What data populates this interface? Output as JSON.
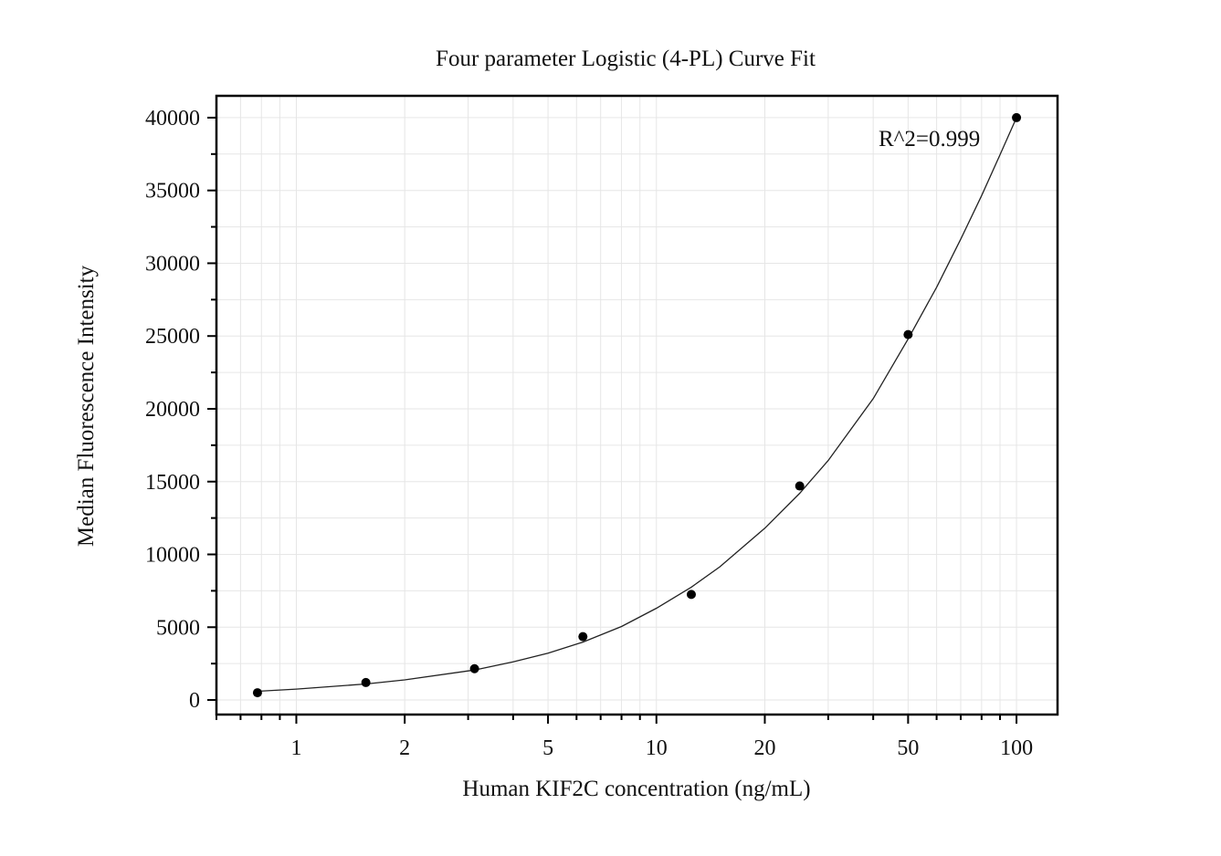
{
  "chart_data": {
    "type": "scatter",
    "title": "Four parameter Logistic (4-PL) Curve Fit",
    "xlabel": "Human KIF2C concentration (ng/mL)",
    "ylabel": "Median Fluorescence Intensity",
    "x_scale": "log",
    "xlim": [
      0.6,
      130
    ],
    "ylim": [
      -1000,
      41500
    ],
    "x_ticks": [
      1,
      2,
      5,
      10,
      20,
      50,
      100
    ],
    "x_tick_labels": [
      "1",
      "2",
      "5",
      "10",
      "20",
      "50",
      "100"
    ],
    "y_ticks": [
      0,
      5000,
      10000,
      15000,
      20000,
      25000,
      30000,
      35000,
      40000
    ],
    "y_tick_labels": [
      "0",
      "5000",
      "10000",
      "15000",
      "20000",
      "25000",
      "30000",
      "35000",
      "40000"
    ],
    "grid": true,
    "annotation": "R^2=0.999",
    "series": [
      {
        "type": "scatter",
        "x": [
          0.78,
          1.56,
          3.125,
          6.25,
          12.5,
          25,
          50,
          100
        ],
        "y": [
          500,
          1200,
          2150,
          4350,
          7250,
          14700,
          25100,
          40000
        ]
      },
      {
        "type": "line",
        "x": [
          0.78,
          1,
          1.56,
          2,
          3.125,
          4,
          5,
          6.25,
          8,
          10,
          12.5,
          15,
          20,
          25,
          30,
          40,
          50,
          60,
          70,
          80,
          90,
          100
        ],
        "y": [
          600,
          750,
          1100,
          1380,
          2060,
          2620,
          3220,
          3980,
          5050,
          6300,
          7750,
          9150,
          11800,
          14200,
          16450,
          20700,
          24800,
          28350,
          31650,
          34650,
          37450,
          40000
        ]
      }
    ],
    "colors": {
      "point": "#000000",
      "curve": "#222222",
      "grid": "#e6e6e6",
      "axis": "#000000"
    }
  }
}
